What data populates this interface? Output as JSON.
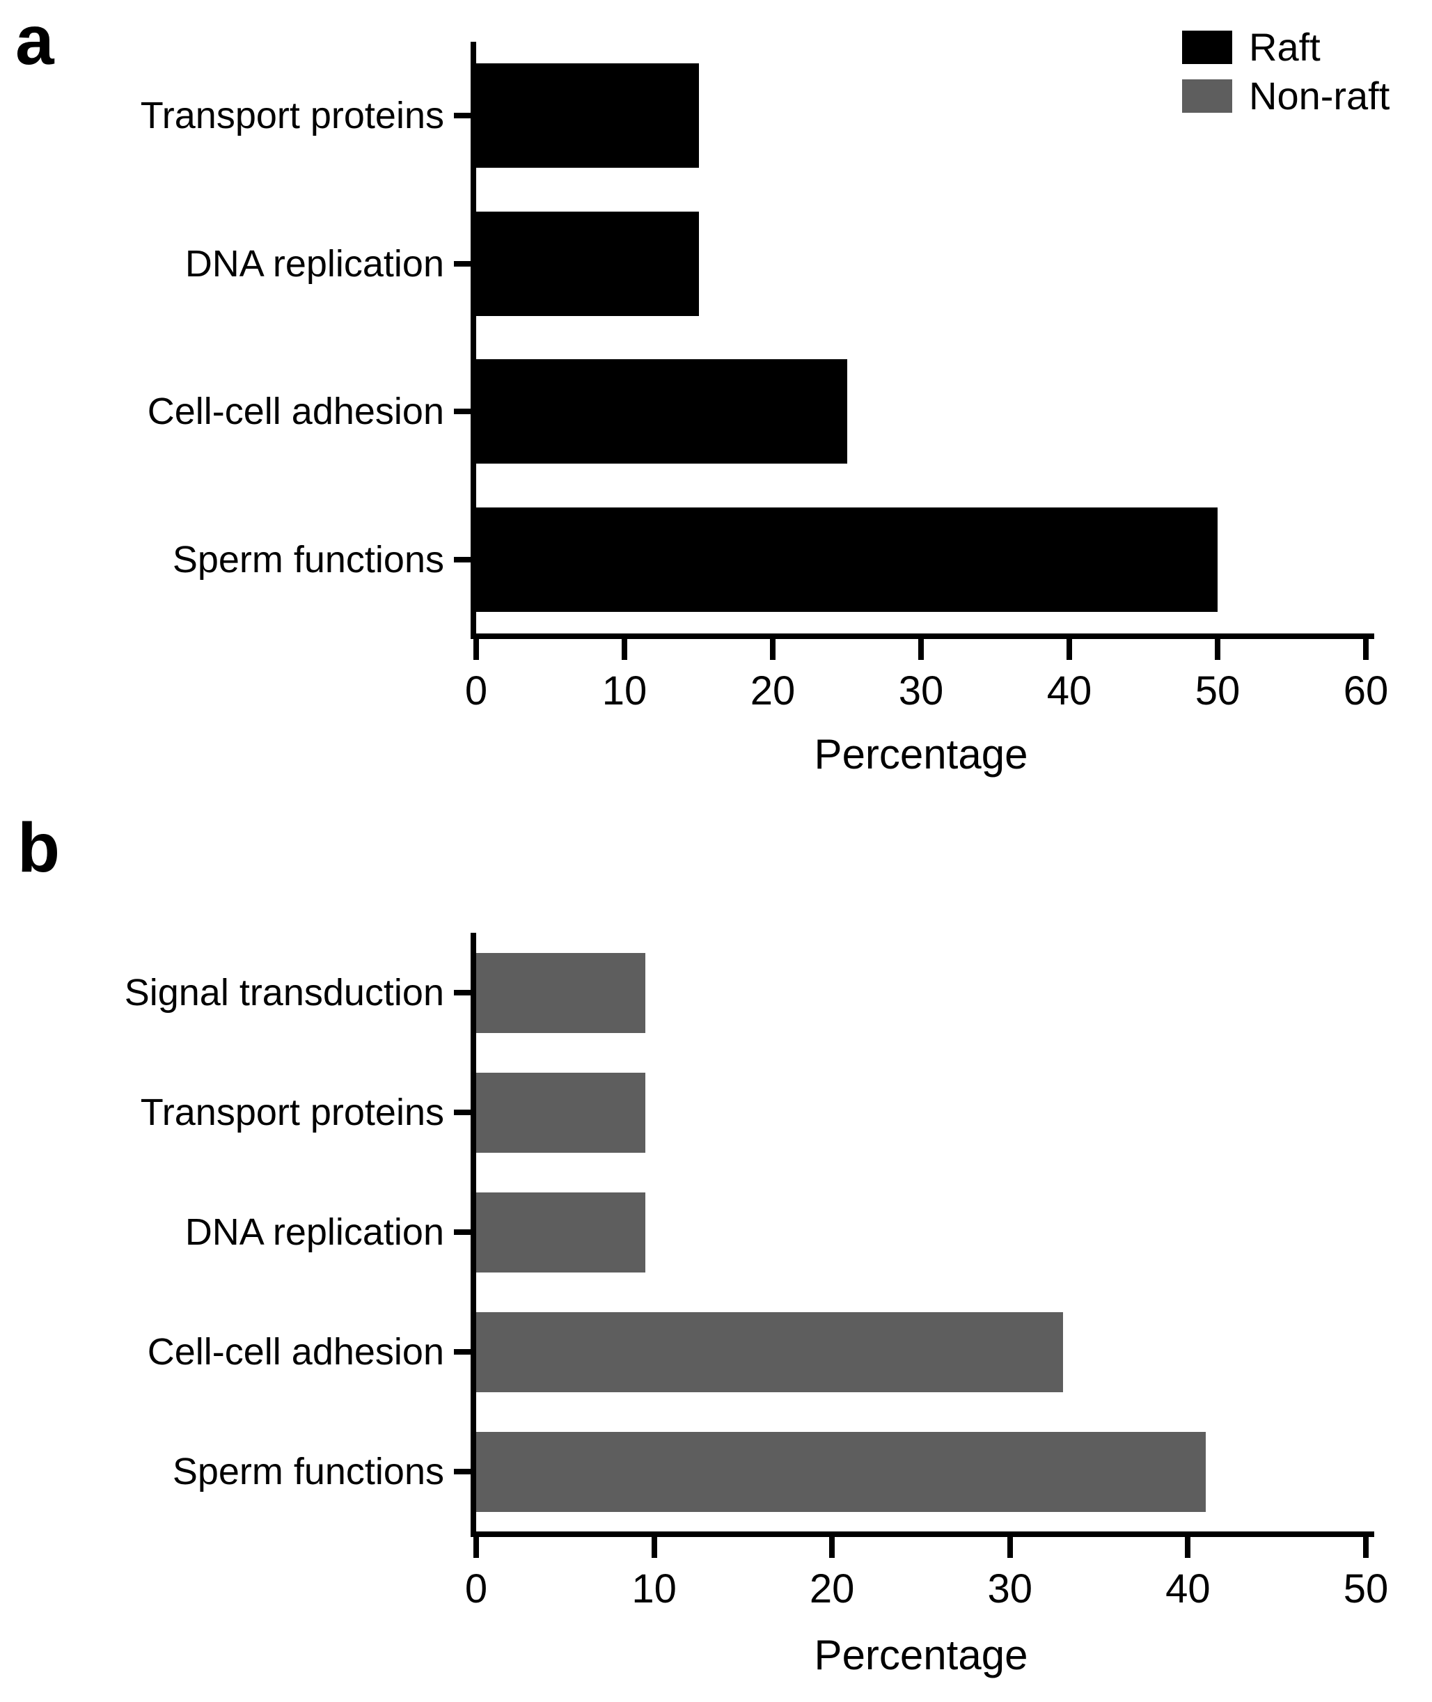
{
  "figure": {
    "background": "#ffffff",
    "panel_letters": {
      "a": "a",
      "b": "b"
    }
  },
  "legend": {
    "position": "top-right",
    "entries": [
      {
        "label": "Raft",
        "color": "#000000"
      },
      {
        "label": "Non-raft",
        "color": "#5e5e5e"
      }
    ]
  },
  "chart_data": [
    {
      "type": "bar",
      "orientation": "horizontal",
      "panel": "a",
      "series_name": "Raft",
      "bar_color": "#000000",
      "categories": [
        "Transport proteins",
        "DNA replication",
        "Cell-cell adhesion",
        "Sperm functions"
      ],
      "values": [
        15,
        15,
        25,
        50
      ],
      "xlabel": "Percentage",
      "xticks": [
        0,
        10,
        20,
        30,
        40,
        50,
        60
      ],
      "xlim": [
        0,
        60
      ],
      "grid": false,
      "axis_color": "#000000"
    },
    {
      "type": "bar",
      "orientation": "horizontal",
      "panel": "b",
      "series_name": "Non-raft",
      "bar_color": "#5e5e5e",
      "categories": [
        "Signal transduction",
        "Transport proteins",
        "DNA replication",
        "Cell-cell adhesion",
        "Sperm functions"
      ],
      "values": [
        9.5,
        9.5,
        9.5,
        33,
        41
      ],
      "xlabel": "Percentage",
      "xticks": [
        0,
        10,
        20,
        30,
        40,
        50
      ],
      "xlim": [
        0,
        50
      ],
      "grid": false,
      "axis_color": "#000000"
    }
  ]
}
